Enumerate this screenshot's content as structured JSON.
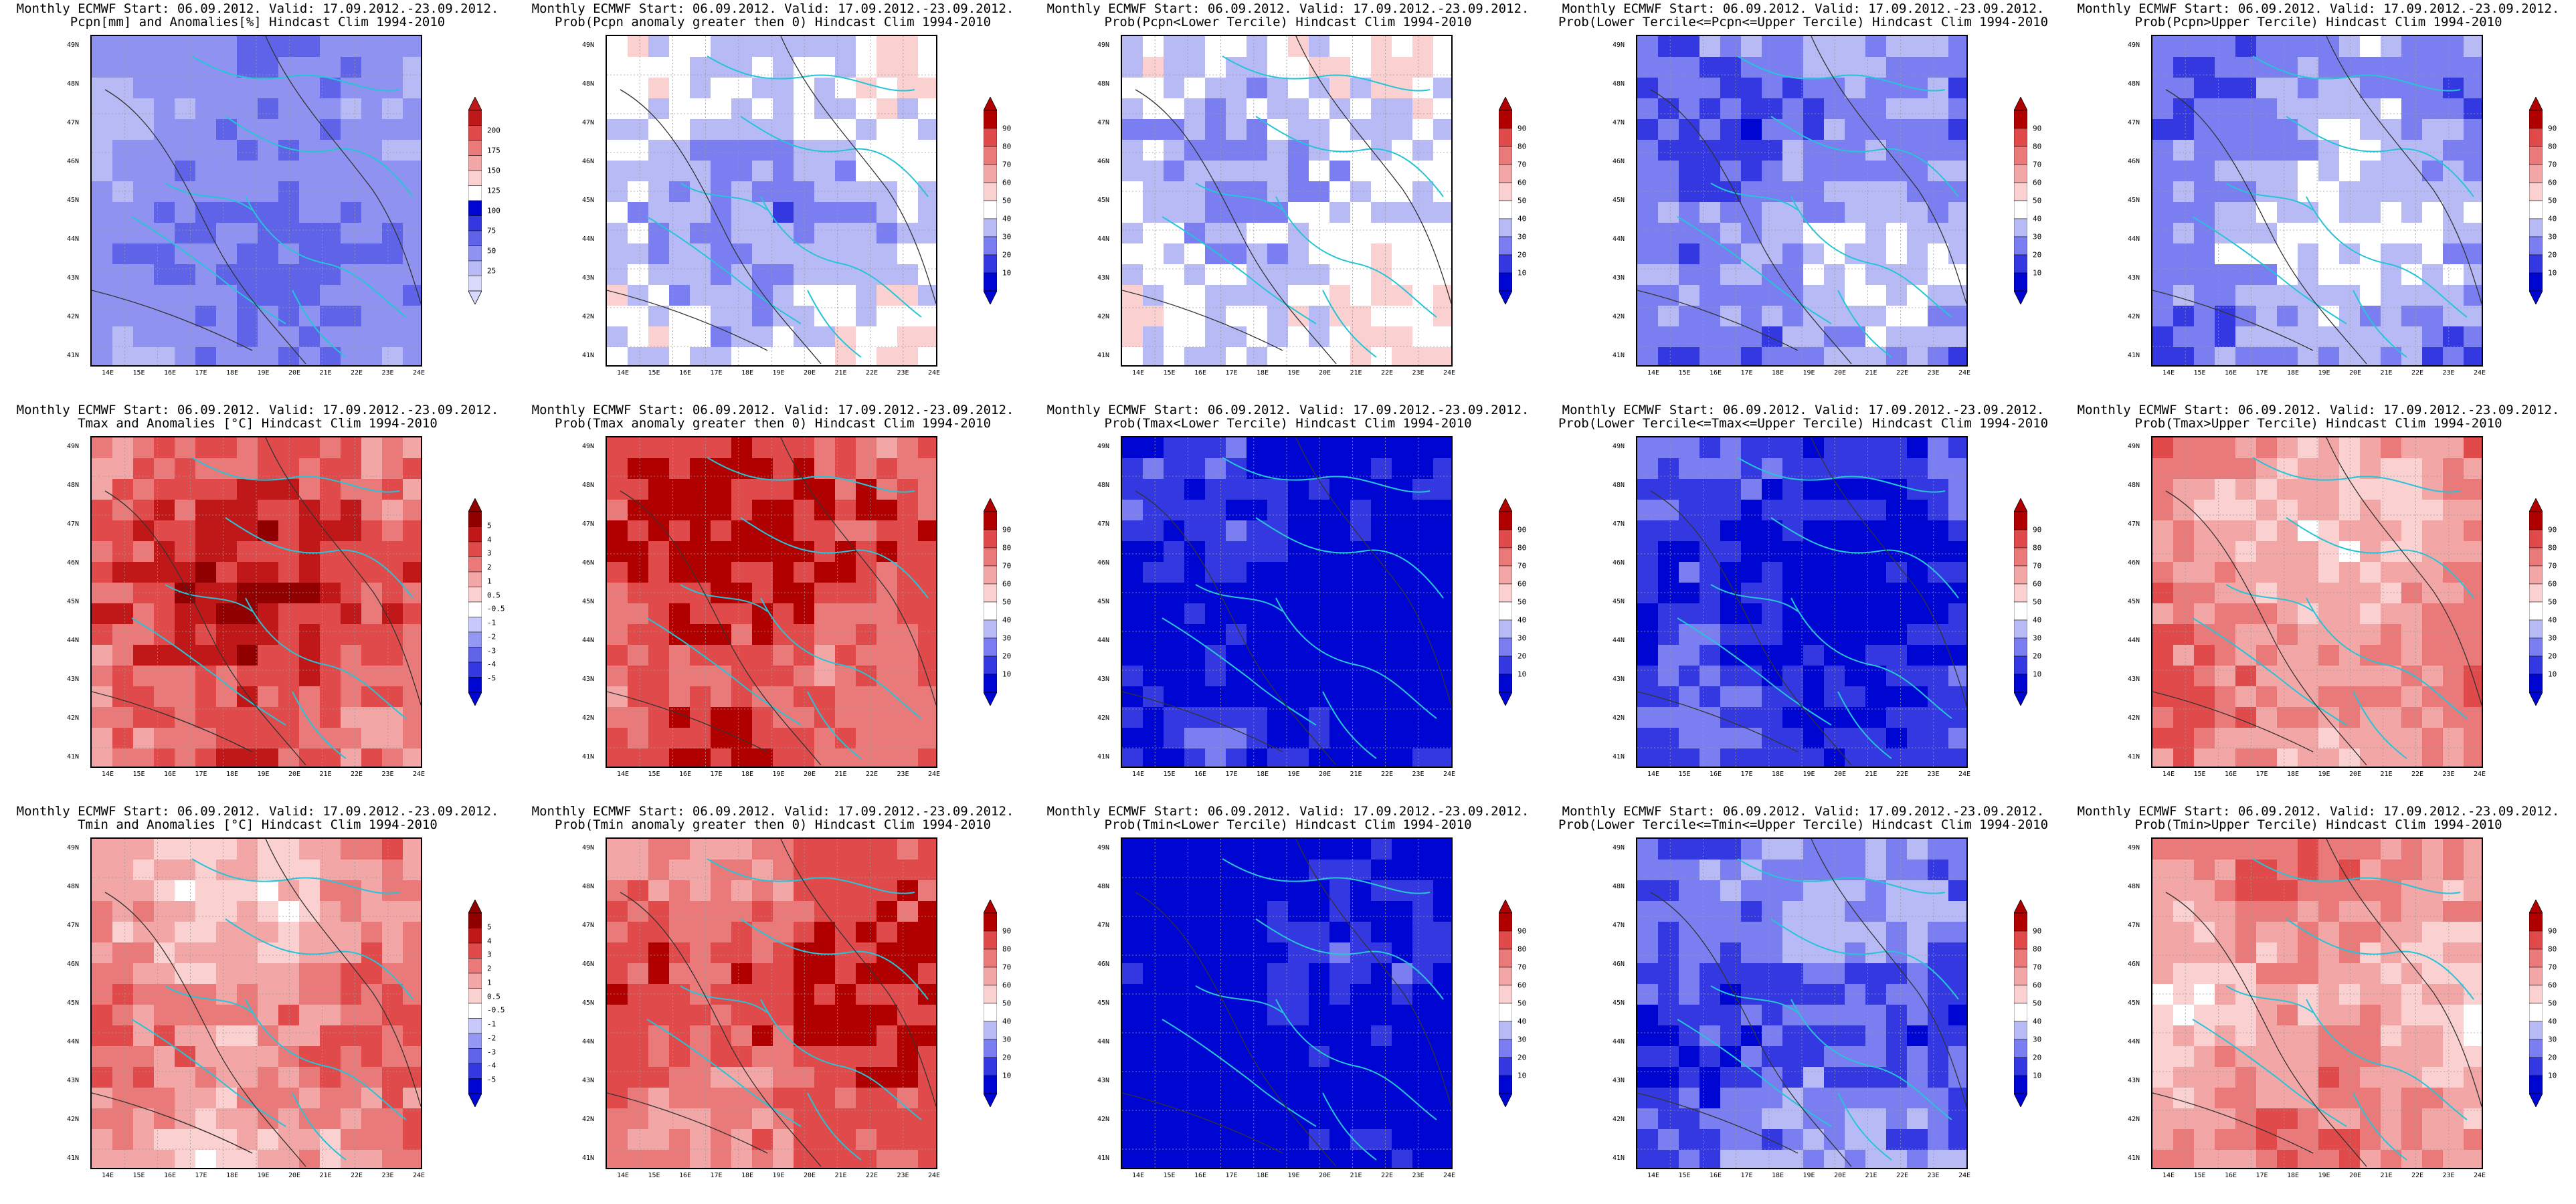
{
  "lat_labels": [
    "49N",
    "48N",
    "47N",
    "46N",
    "45N",
    "44N",
    "43N",
    "42N",
    "41N"
  ],
  "lon_labels": [
    "14E",
    "15E",
    "16E",
    "17E",
    "18E",
    "19E",
    "20E",
    "21E",
    "22E",
    "23E",
    "24E"
  ],
  "palettes": {
    "precip": [
      "#d8d9fb",
      "#b8baf6",
      "#8f92f0",
      "#5f63e8",
      "#3338e0",
      "#0006d2",
      "#ffffff",
      "#fad0d0",
      "#f2a6a6",
      "#ea7a7a",
      "#e04a4a",
      "#c01818"
    ],
    "prob": [
      "#0006d2",
      "#3338e0",
      "#7a7ef0",
      "#b8baf6",
      "#ffffff",
      "#fad0d0",
      "#f2a6a6",
      "#ea7a7a",
      "#e04a4a",
      "#b00000"
    ],
    "temp": [
      "#0006d2",
      "#3338e0",
      "#6064e8",
      "#9598f2",
      "#c8c9fa",
      "#ffffff",
      "#fad0d0",
      "#f2a6a6",
      "#ea7a7a",
      "#e04a4a",
      "#c01818",
      "#900000"
    ]
  },
  "panels": [
    {
      "title1": "Monthly ECMWF Start: 06.09.2012. Valid: 17.09.2012.-23.09.2012.",
      "title2": "Pcpn[mm] and Anomalies[%] Hindcast Clim 1994-2010",
      "palette": "precip",
      "field_level": 0.22,
      "colorbar_labels": [
        "200",
        "175",
        "150",
        "125",
        "100",
        "75",
        "50",
        "25"
      ]
    },
    {
      "title1": "Monthly ECMWF Start: 06.09.2012. Valid: 17.09.2012.-23.09.2012.",
      "title2": "Prob(Pcpn anomaly greater then 0) Hindcast Clim 1994-2010",
      "palette": "prob",
      "field_level": 0.38,
      "colorbar_labels": [
        "90",
        "80",
        "70",
        "60",
        "50",
        "40",
        "30",
        "20",
        "10"
      ]
    },
    {
      "title1": "Monthly ECMWF Start: 06.09.2012. Valid: 17.09.2012.-23.09.2012.",
      "title2": "Prob(Pcpn<Lower Tercile) Hindcast Clim 1994-2010",
      "palette": "prob",
      "field_level": 0.4,
      "colorbar_labels": [
        "90",
        "80",
        "70",
        "60",
        "50",
        "40",
        "30",
        "20",
        "10"
      ]
    },
    {
      "title1": "Monthly ECMWF Start: 06.09.2012. Valid: 17.09.2012.-23.09.2012.",
      "title2": "Prob(Lower Tercile<=Pcpn<=Upper Tercile) Hindcast Clim 1994-2010",
      "palette": "prob",
      "field_level": 0.28,
      "colorbar_labels": [
        "90",
        "80",
        "70",
        "60",
        "50",
        "40",
        "30",
        "20",
        "10"
      ]
    },
    {
      "title1": "Monthly ECMWF Start: 06.09.2012. Valid: 17.09.2012.-23.09.2012.",
      "title2": "Prob(Pcpn>Upper Tercile) Hindcast Clim 1994-2010",
      "palette": "prob",
      "field_level": 0.32,
      "colorbar_labels": [
        "90",
        "80",
        "70",
        "60",
        "50",
        "40",
        "30",
        "20",
        "10"
      ]
    },
    {
      "title1": "Monthly ECMWF Start: 06.09.2012. Valid: 17.09.2012.-23.09.2012.",
      "title2": "Tmax and Anomalies [°C] Hindcast Clim 1994-2010",
      "palette": "temp",
      "field_level": 0.78,
      "colorbar_labels": [
        "5",
        "4",
        "3",
        "2",
        "1",
        "0.5",
        "-0.5",
        "-1",
        "-2",
        "-3",
        "-4",
        "-5"
      ]
    },
    {
      "title1": "Monthly ECMWF Start: 06.09.2012. Valid: 17.09.2012.-23.09.2012.",
      "title2": "Prob(Tmax anomaly greater then 0) Hindcast Clim 1994-2010",
      "palette": "prob",
      "field_level": 0.84,
      "colorbar_labels": [
        "90",
        "80",
        "70",
        "60",
        "50",
        "40",
        "30",
        "20",
        "10"
      ]
    },
    {
      "title1": "Monthly ECMWF Start: 06.09.2012. Valid: 17.09.2012.-23.09.2012.",
      "title2": "Prob(Tmax<Lower Tercile) Hindcast Clim 1994-2010",
      "palette": "prob",
      "field_level": 0.05,
      "colorbar_labels": [
        "90",
        "80",
        "70",
        "60",
        "50",
        "40",
        "30",
        "20",
        "10"
      ]
    },
    {
      "title1": "Monthly ECMWF Start: 06.09.2012. Valid: 17.09.2012.-23.09.2012.",
      "title2": "Prob(Lower Tercile<=Tmax<=Upper Tercile) Hindcast Clim 1994-2010",
      "palette": "prob",
      "field_level": 0.12,
      "colorbar_labels": [
        "90",
        "80",
        "70",
        "60",
        "50",
        "40",
        "30",
        "20",
        "10"
      ]
    },
    {
      "title1": "Monthly ECMWF Start: 06.09.2012. Valid: 17.09.2012.-23.09.2012.",
      "title2": "Prob(Tmax>Upper Tercile) Hindcast Clim 1994-2010",
      "palette": "prob",
      "field_level": 0.68,
      "colorbar_labels": [
        "90",
        "80",
        "70",
        "60",
        "50",
        "40",
        "30",
        "20",
        "10"
      ]
    },
    {
      "title1": "Monthly ECMWF Start: 06.09.2012. Valid: 17.09.2012.-23.09.2012.",
      "title2": "Tmin and Anomalies [°C] Hindcast Clim 1994-2010",
      "palette": "temp",
      "field_level": 0.66,
      "colorbar_labels": [
        "5",
        "4",
        "3",
        "2",
        "1",
        "0.5",
        "-0.5",
        "-1",
        "-2",
        "-3",
        "-4",
        "-5"
      ]
    },
    {
      "title1": "Monthly ECMWF Start: 06.09.2012. Valid: 17.09.2012.-23.09.2012.",
      "title2": "Prob(Tmin anomaly greater then 0) Hindcast Clim 1994-2010",
      "palette": "prob",
      "field_level": 0.82,
      "colorbar_labels": [
        "90",
        "80",
        "70",
        "60",
        "50",
        "40",
        "30",
        "20",
        "10"
      ]
    },
    {
      "title1": "Monthly ECMWF Start: 06.09.2012. Valid: 17.09.2012.-23.09.2012.",
      "title2": "Prob(Tmin<Lower Tercile) Hindcast Clim 1994-2010",
      "palette": "prob",
      "field_level": 0.03,
      "colorbar_labels": [
        "90",
        "80",
        "70",
        "60",
        "50",
        "40",
        "30",
        "20",
        "10"
      ]
    },
    {
      "title1": "Monthly ECMWF Start: 06.09.2012. Valid: 17.09.2012.-23.09.2012.",
      "title2": "Prob(Lower Tercile<=Tmin<=Upper Tercile) Hindcast Clim 1994-2010",
      "palette": "prob",
      "field_level": 0.22,
      "colorbar_labels": [
        "90",
        "80",
        "70",
        "60",
        "50",
        "40",
        "30",
        "20",
        "10"
      ]
    },
    {
      "title1": "Monthly ECMWF Start: 06.09.2012. Valid: 17.09.2012.-23.09.2012.",
      "title2": "Prob(Tmin>Upper Tercile) Hindcast Clim 1994-2010",
      "palette": "prob",
      "field_level": 0.66,
      "colorbar_labels": [
        "90",
        "80",
        "70",
        "60",
        "50",
        "40",
        "30",
        "20",
        "10"
      ]
    }
  ]
}
